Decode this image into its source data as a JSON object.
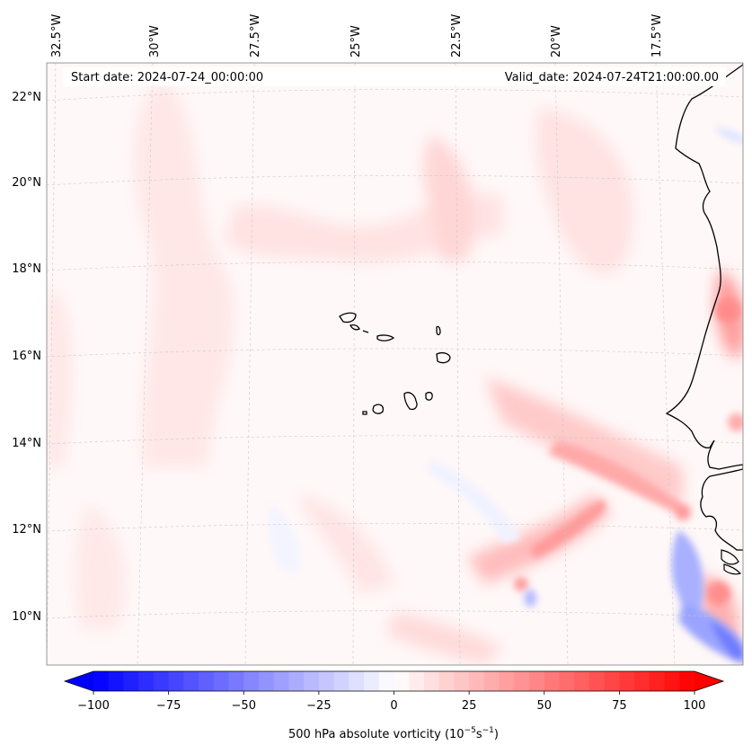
{
  "header": {
    "start_date": "Start date: 2024-07-24_00:00:00",
    "valid_date": "Valid_date: 2024-07-24T21:00:00.00"
  },
  "map": {
    "lon_ticks": [
      "32.5°W",
      "30°W",
      "27.5°W",
      "25°W",
      "22.5°W",
      "20°W",
      "17.5°W"
    ],
    "lat_ticks": [
      "22°N",
      "20°N",
      "18°N",
      "16°N",
      "14°N",
      "12°N",
      "10°N"
    ]
  },
  "colorbar": {
    "min": -100,
    "max": 100,
    "tick_labels": [
      "−100",
      "−75",
      "−50",
      "−25",
      "0",
      "25",
      "50",
      "75",
      "100"
    ],
    "label": "500 hPa absolute vorticity (10",
    "label_exp1": "−5",
    "label_mid": "s",
    "label_exp2": "−1",
    "label_end": ")",
    "colors": {
      "negative": "#0000ff",
      "zero": "#ffffff",
      "positive": "#ff0000"
    }
  }
}
